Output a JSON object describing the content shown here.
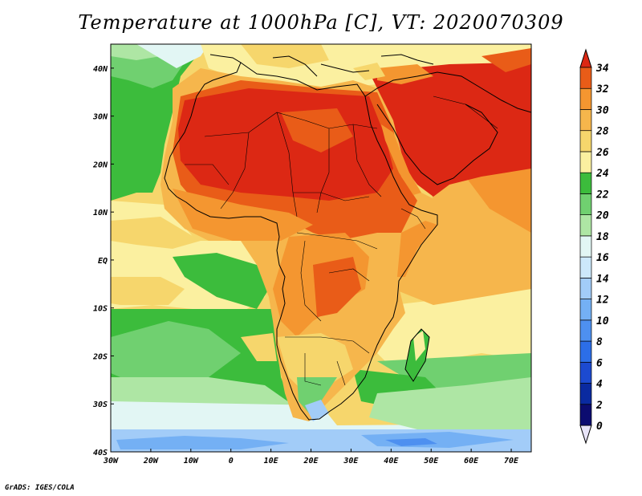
{
  "title": "Temperature at 1000hPa [C], VT: 2020070309",
  "footer": "GrADS: IGES/COLA",
  "chart_data": {
    "type": "heatmap",
    "title": "Temperature at 1000hPa [C], VT: 2020070309",
    "lon_range": [
      -30,
      75
    ],
    "lat_range": [
      -40,
      45
    ],
    "x_ticks": [
      "30W",
      "20W",
      "10W",
      "0",
      "10E",
      "20E",
      "30E",
      "40E",
      "50E",
      "60E",
      "70E"
    ],
    "y_ticks": [
      "40S",
      "30S",
      "20S",
      "10S",
      "EQ",
      "10N",
      "20N",
      "30N",
      "40N"
    ],
    "colorbar": {
      "levels": [
        "0",
        "2",
        "4",
        "6",
        "8",
        "10",
        "12",
        "14",
        "16",
        "18",
        "20",
        "22",
        "24",
        "26",
        "28",
        "30",
        "32",
        "34"
      ],
      "colors": [
        "#0c0c70",
        "#0a2aa0",
        "#1c4ad0",
        "#2c6ee8",
        "#4e90f0",
        "#74b0f4",
        "#a2ccf8",
        "#cce8fb",
        "#e2f6f4",
        "#aee6a4",
        "#70d070",
        "#3cbc3c",
        "#fbf0a0",
        "#f6d66c",
        "#f6b64c",
        "#f49630",
        "#e95c18",
        "#dc2814"
      ]
    }
  }
}
